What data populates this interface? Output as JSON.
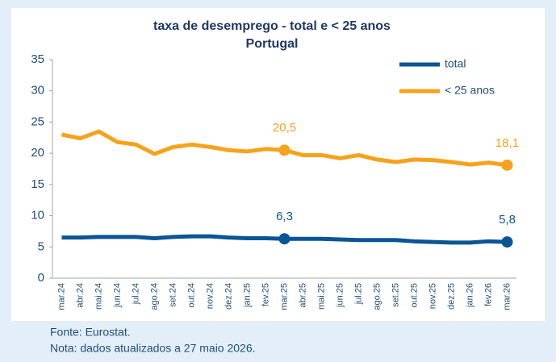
{
  "chart_data": {
    "type": "line",
    "title": "taxa de desemprego - total e < 25 anos",
    "subtitle": "Portugal",
    "categories": [
      "mar.24",
      "abr.24",
      "mai.24",
      "jun.24",
      "jul.24",
      "ago.24",
      "set.24",
      "out.24",
      "nov.24",
      "dez.24",
      "jan.25",
      "fev.25",
      "mar.25",
      "abr.25",
      "mai.25",
      "jun.25",
      "jul.25",
      "ago.25",
      "set.25",
      "out.25",
      "nov.25",
      "dez.25",
      "jan.26",
      "fev.26",
      "mar.26"
    ],
    "series": [
      {
        "name": "total",
        "color": "#0a5596",
        "values": [
          6.5,
          6.5,
          6.6,
          6.6,
          6.6,
          6.4,
          6.6,
          6.7,
          6.7,
          6.5,
          6.4,
          6.4,
          6.3,
          6.3,
          6.3,
          6.2,
          6.1,
          6.1,
          6.1,
          5.9,
          5.8,
          5.7,
          5.7,
          5.9,
          5.8
        ],
        "value_labels": [
          null,
          null,
          null,
          null,
          null,
          null,
          null,
          null,
          null,
          null,
          null,
          null,
          "6,3",
          null,
          null,
          null,
          null,
          null,
          null,
          null,
          null,
          null,
          null,
          null,
          "5,8"
        ]
      },
      {
        "name": "< 25 anos",
        "color": "#f7a21b",
        "values": [
          23.0,
          22.4,
          23.5,
          21.8,
          21.4,
          19.9,
          21.0,
          21.4,
          21.0,
          20.5,
          20.3,
          20.7,
          20.5,
          19.7,
          19.7,
          19.2,
          19.7,
          19.0,
          18.6,
          19.0,
          18.9,
          18.6,
          18.2,
          18.5,
          18.1
        ],
        "value_labels": [
          null,
          null,
          null,
          null,
          null,
          null,
          null,
          null,
          null,
          null,
          null,
          null,
          "20,5",
          null,
          null,
          null,
          null,
          null,
          null,
          null,
          null,
          null,
          null,
          null,
          "18,1"
        ]
      }
    ],
    "ylim": [
      0,
      35
    ],
    "yticks": [
      0,
      5,
      10,
      15,
      20,
      25,
      30,
      35
    ],
    "grid": false,
    "legend": "top-right",
    "notes": [
      "Fonte: Eurostat.",
      "Nota: dados atualizados a 27 maio 2026."
    ]
  }
}
